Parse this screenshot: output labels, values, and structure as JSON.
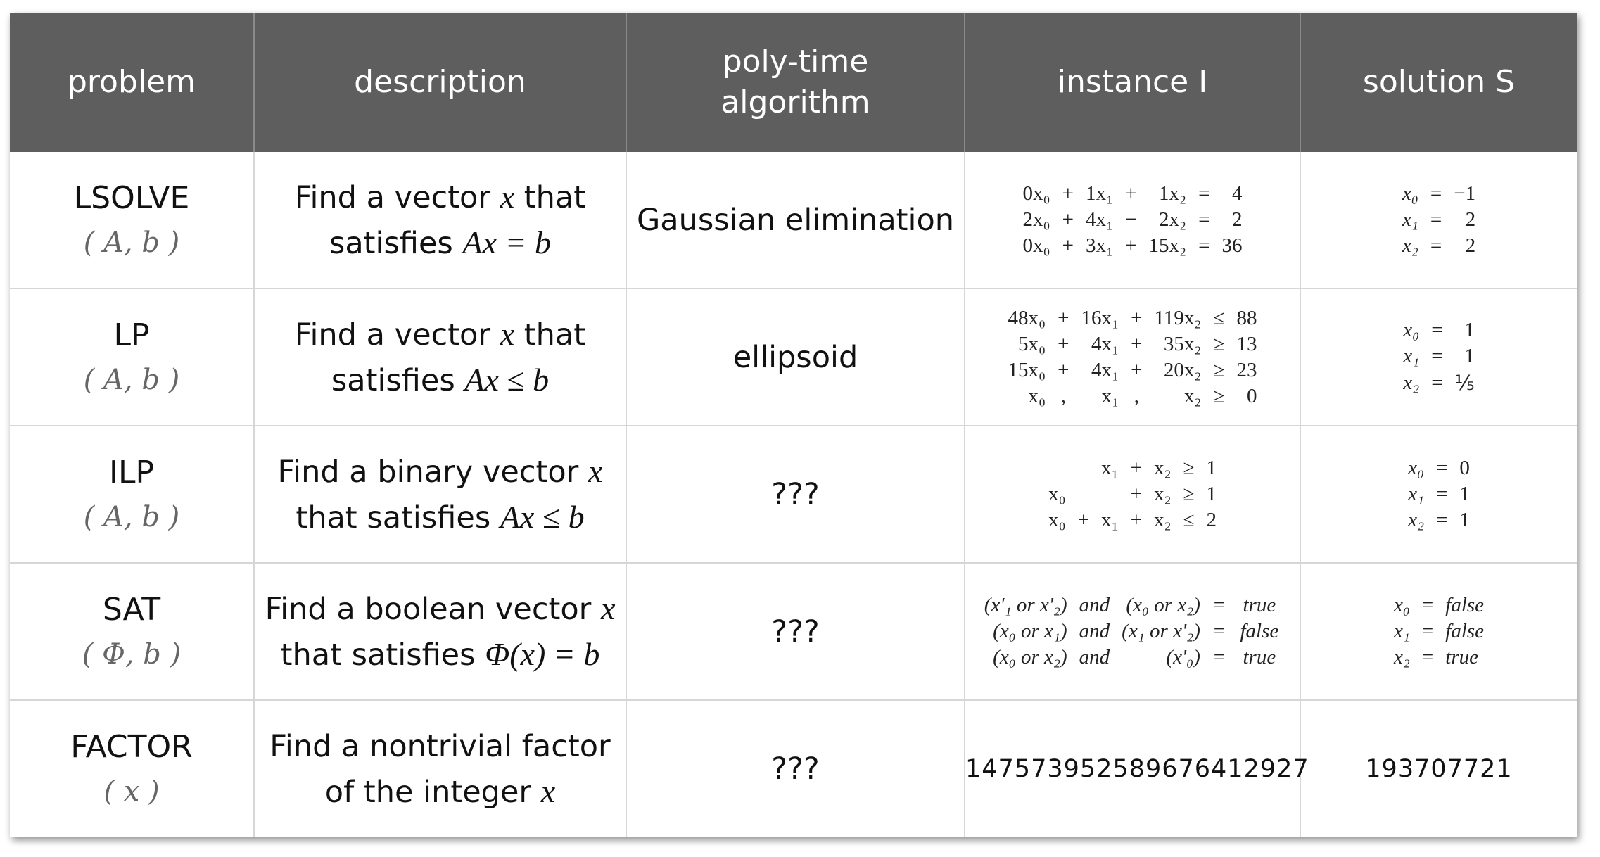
{
  "headers": [
    "problem",
    "description",
    "poly-time\nalgorithm",
    "instance I",
    "solution S"
  ],
  "rows": [
    {
      "name": "LSOLVE",
      "args": "( A, b )",
      "desc_a": "Find a vector ",
      "desc_x": "x",
      "desc_b": " that",
      "desc_c": "satisfies ",
      "desc_m": "Ax = b",
      "algorithm": "Gaussian elimination",
      "instance": [
        [
          "0x₀",
          "+",
          "1x₁",
          "+",
          "1x₂",
          "=",
          "4"
        ],
        [
          "2x₀",
          "+",
          "4x₁",
          "−",
          "2x₂",
          "=",
          "2"
        ],
        [
          "0x₀",
          "+",
          "3x₁",
          "+",
          "15x₂",
          "=",
          "36"
        ]
      ],
      "solution": [
        [
          "x₀",
          "=",
          "−1"
        ],
        [
          "x₁",
          "=",
          "2"
        ],
        [
          "x₂",
          "=",
          "2"
        ]
      ]
    },
    {
      "name": "LP",
      "args": "( A, b )",
      "desc_a": "Find a vector ",
      "desc_x": "x",
      "desc_b": " that",
      "desc_c": "satisfies ",
      "desc_m": "Ax ≤ b",
      "algorithm": "ellipsoid",
      "instance": [
        [
          "48x₀",
          "+",
          "16x₁",
          "+",
          "119x₂",
          "≤",
          "88"
        ],
        [
          "5x₀",
          "+",
          "4x₁",
          "+",
          "35x₂",
          "≥",
          "13"
        ],
        [
          "15x₀",
          "+",
          "4x₁",
          "+",
          "20x₂",
          "≥",
          "23"
        ],
        [
          "x₀",
          ",",
          "x₁",
          ",",
          "x₂",
          "≥",
          "0"
        ]
      ],
      "solution": [
        [
          "x₀",
          "=",
          "1"
        ],
        [
          "x₁",
          "=",
          "1"
        ],
        [
          "x₂",
          "=",
          "⅕"
        ]
      ]
    },
    {
      "name": "ILP",
      "args": "( A, b )",
      "desc_a": "Find a binary vector ",
      "desc_x": "x",
      "desc_b": "",
      "desc_c": "that satisfies ",
      "desc_m": "Ax ≤ b",
      "algorithm": "???",
      "instance": [
        [
          "",
          "",
          "x₁",
          "+",
          "x₂",
          "≥",
          "1"
        ],
        [
          "x₀",
          "",
          "",
          "+",
          "x₂",
          "≥",
          "1"
        ],
        [
          "x₀",
          "+",
          "x₁",
          "+",
          "x₂",
          "≤",
          "2"
        ]
      ],
      "solution": [
        [
          "x₀",
          "=",
          "0"
        ],
        [
          "x₁",
          "=",
          "1"
        ],
        [
          "x₂",
          "=",
          "1"
        ]
      ]
    },
    {
      "name": "SAT",
      "args": "( Φ, b )",
      "desc_a": "Find a boolean vector ",
      "desc_x": "x",
      "desc_b": "",
      "desc_c": "that satisfies ",
      "desc_m": "Φ(x) = b",
      "algorithm": "???",
      "instance": [
        [
          "(x'₁ or x'₂)",
          "and",
          "(x₀ or x₂)",
          "=",
          "true"
        ],
        [
          "(x₀ or x₁)",
          "and",
          "(x₁ or x'₂)",
          "=",
          "false"
        ],
        [
          "(x₀ or x₂)",
          "and",
          "(x'₀)",
          "=",
          "true"
        ]
      ],
      "solution": [
        [
          "x₀",
          "=",
          "false"
        ],
        [
          "x₁",
          "=",
          "false"
        ],
        [
          "x₂",
          "=",
          "true"
        ]
      ]
    },
    {
      "name": "FACTOR",
      "args": "( x )",
      "desc_a": "Find a nontrivial factor",
      "desc_x": "",
      "desc_b": "",
      "desc_c": "of the integer ",
      "desc_m": "x",
      "algorithm": "???",
      "instance_text": "147573952589676412927",
      "solution_text": "193707721"
    }
  ]
}
